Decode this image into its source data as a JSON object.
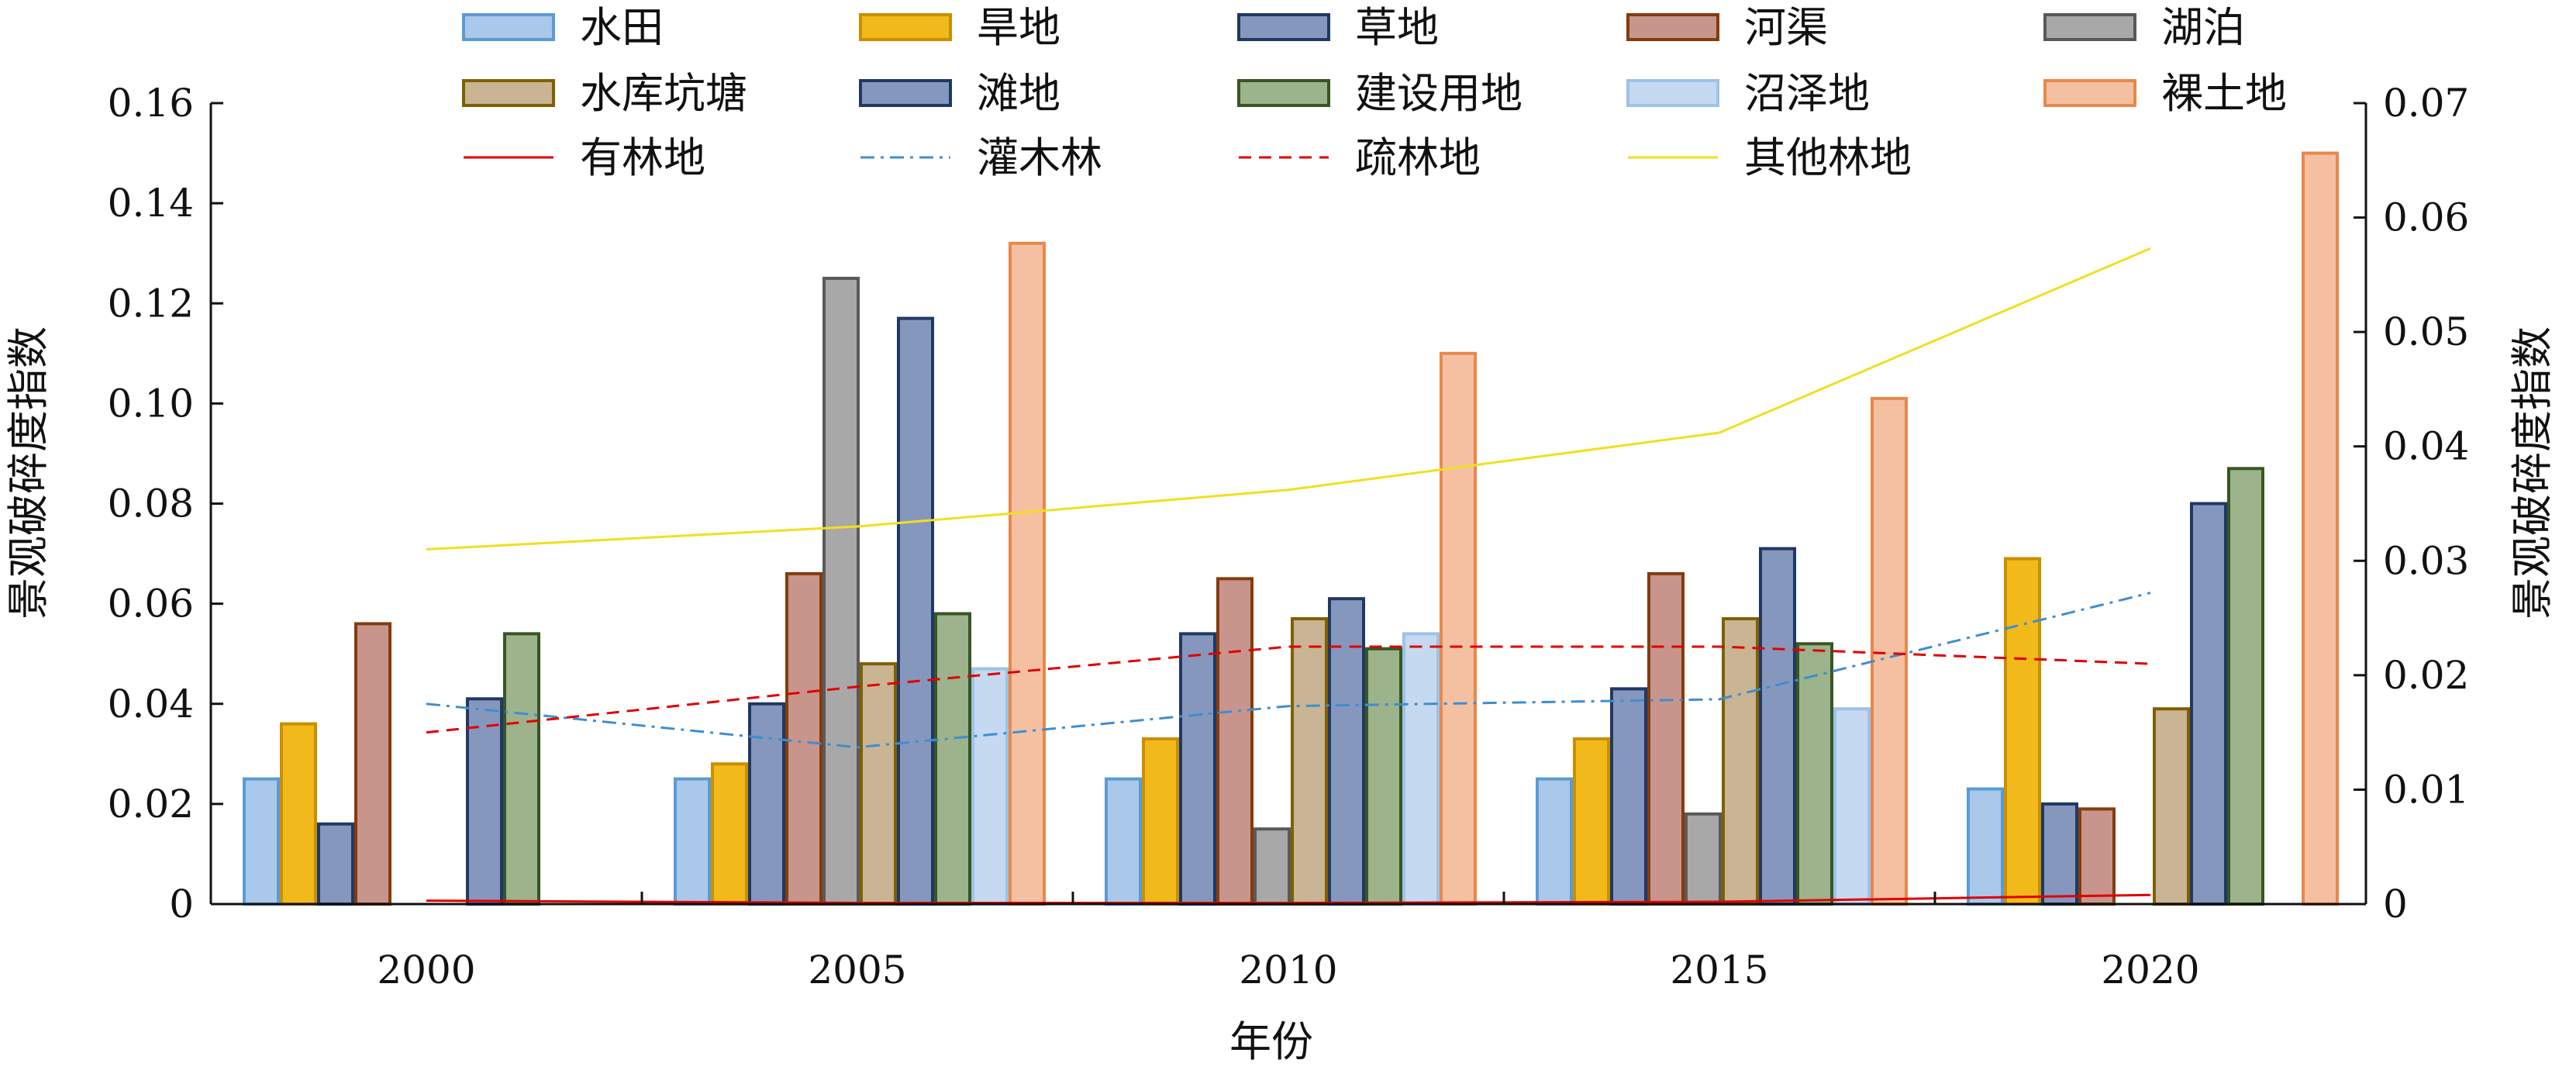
{
  "chart_data": {
    "type": "bar",
    "xlabel": "年份",
    "ylabel_left": "景观破碎度指数",
    "ylabel_right": "景观破碎度指数",
    "ylim_left": [
      0,
      0.16
    ],
    "ylim_right": [
      0,
      0.07
    ],
    "yticks_left": [
      "0",
      "0.02",
      "0.04",
      "0.06",
      "0.08",
      "0.10",
      "0.12",
      "0.14",
      "0.16"
    ],
    "yticks_right": [
      "0",
      "0.01",
      "0.02",
      "0.03",
      "0.04",
      "0.05",
      "0.06",
      "0.07"
    ],
    "categories": [
      "2000",
      "2005",
      "2010",
      "2015",
      "2020"
    ],
    "bar_series": [
      {
        "name": "水田",
        "fill": "#a9c8ea",
        "stroke": "#5b9bd5",
        "values": [
          0.025,
          0.025,
          0.025,
          0.025,
          0.023
        ]
      },
      {
        "name": "旱地",
        "fill": "#f2b91a",
        "stroke": "#c98f00",
        "values": [
          0.036,
          0.028,
          0.033,
          0.033,
          0.069
        ]
      },
      {
        "name": "草地",
        "fill": "#8697bd",
        "stroke": "#1f3864",
        "values": [
          0.016,
          0.04,
          0.054,
          0.043,
          0.02
        ]
      },
      {
        "name": "河渠",
        "fill": "#c8958c",
        "stroke": "#843c0c",
        "values": [
          0.056,
          0.066,
          0.065,
          0.066,
          0.019
        ]
      },
      {
        "name": "湖泊",
        "fill": "#a8a8a8",
        "stroke": "#595959",
        "values": [
          0,
          0.125,
          0.015,
          0.018,
          0
        ]
      },
      {
        "name": "水库坑塘",
        "fill": "#c9b493",
        "stroke": "#7f6000",
        "values": [
          0,
          0.048,
          0.057,
          0.057,
          0.039
        ]
      },
      {
        "name": "滩地",
        "fill": "#8697bd",
        "stroke": "#1f3864",
        "values": [
          0.041,
          0.117,
          0.061,
          0.071,
          0.08
        ]
      },
      {
        "name": "建设用地",
        "fill": "#9cb38c",
        "stroke": "#375623",
        "values": [
          0.054,
          0.058,
          0.051,
          0.052,
          0.087
        ]
      },
      {
        "name": "沼泽地",
        "fill": "#c5d9f0",
        "stroke": "#9dc3e6",
        "values": [
          0,
          0.047,
          0.054,
          0.039,
          0
        ]
      },
      {
        "name": "裸土地",
        "fill": "#f5c0a2",
        "stroke": "#e8884d",
        "values": [
          0,
          0.132,
          0.11,
          0.101,
          0.15
        ]
      }
    ],
    "line_series": [
      {
        "name": "有林地",
        "axis": "right",
        "color": "#e00000",
        "dash": "solid",
        "values": [
          0.0003,
          0.0001,
          0.0001,
          0.0002,
          0.0008
        ]
      },
      {
        "name": "灌木林",
        "axis": "right",
        "color": "#3e8ed0",
        "dash": "dashdot",
        "values": [
          0.0175,
          0.0137,
          0.0173,
          0.0179,
          0.0272
        ]
      },
      {
        "name": "疏林地",
        "axis": "right",
        "color": "#e00000",
        "dash": "dashed",
        "values": [
          0.015,
          0.019,
          0.0225,
          0.0225,
          0.021
        ]
      },
      {
        "name": "其他林地",
        "axis": "right",
        "color": "#f0e020",
        "dash": "solid",
        "values": [
          0.031,
          0.033,
          0.0362,
          0.0412,
          0.0573
        ]
      }
    ]
  }
}
